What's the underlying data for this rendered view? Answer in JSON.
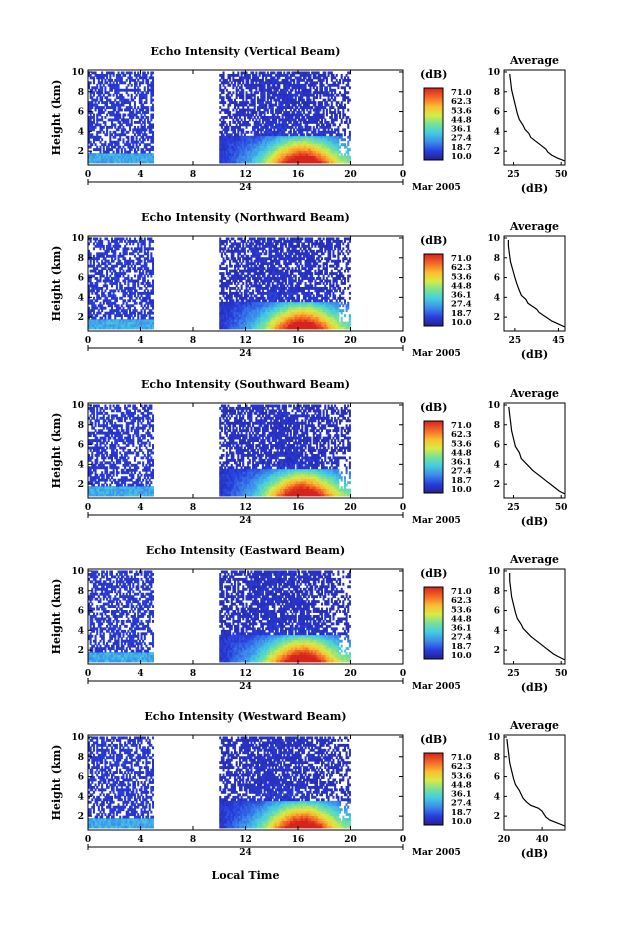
{
  "chart_data": {
    "type": "heatmap",
    "date_label": "Mar 2005",
    "day_label": "24",
    "xlabel": "Local Time",
    "ylabel": "Height (km)",
    "x_ticks": [
      "0",
      "4",
      "8",
      "12",
      "16",
      "20",
      "0"
    ],
    "y_ticks": [
      "2",
      "4",
      "6",
      "8",
      "10"
    ],
    "xlim_hours": [
      0,
      24
    ],
    "ylim_km": [
      0.6,
      10.2
    ],
    "colorbar": {
      "unit": "(dB)",
      "labels": [
        "71.0",
        "62.3",
        "53.6",
        "44.8",
        "36.1",
        "27.4",
        "18.7",
        "10.0"
      ],
      "range": [
        10.0,
        71.0
      ]
    },
    "average_title": "Average",
    "average_xlabel": "(dB)",
    "panels": [
      {
        "title": "Echo Intensity (Vertical Beam)",
        "avg_xlim": [
          20,
          52
        ],
        "avg_ticks": [
          "25",
          "50"
        ],
        "avg_tick_values": [
          25,
          50
        ],
        "avg_profile": [
          [
            52,
            1.0
          ],
          [
            48,
            1.3
          ],
          [
            45,
            1.6
          ],
          [
            43,
            1.9
          ],
          [
            42,
            2.2
          ],
          [
            40,
            2.5
          ],
          [
            38,
            2.8
          ],
          [
            36,
            3.1
          ],
          [
            34,
            3.4
          ],
          [
            33,
            3.8
          ],
          [
            31,
            4.2
          ],
          [
            30,
            4.6
          ],
          [
            28,
            5.2
          ],
          [
            27,
            5.8
          ],
          [
            26,
            6.6
          ],
          [
            25,
            7.4
          ],
          [
            24,
            8.2
          ],
          [
            23.5,
            9.0
          ],
          [
            23,
            9.8
          ]
        ],
        "data_hours": [
          [
            0,
            5
          ],
          [
            10,
            20
          ]
        ]
      },
      {
        "title": "Echo Intensity (Northward Beam)",
        "avg_xlim": [
          20,
          48
        ],
        "avg_ticks": [
          "25",
          "45"
        ],
        "avg_tick_values": [
          25,
          45
        ],
        "avg_profile": [
          [
            48,
            1.0
          ],
          [
            45,
            1.3
          ],
          [
            42,
            1.6
          ],
          [
            40,
            1.9
          ],
          [
            38,
            2.2
          ],
          [
            36,
            2.5
          ],
          [
            35,
            2.8
          ],
          [
            33,
            3.1
          ],
          [
            31,
            3.4
          ],
          [
            30,
            3.8
          ],
          [
            28,
            4.2
          ],
          [
            27,
            4.7
          ],
          [
            26,
            5.3
          ],
          [
            25,
            6.0
          ],
          [
            24,
            6.8
          ],
          [
            23,
            7.6
          ],
          [
            22.5,
            8.4
          ],
          [
            22,
            9.2
          ],
          [
            22,
            9.8
          ]
        ],
        "data_hours": [
          [
            0,
            5
          ],
          [
            10,
            20
          ]
        ]
      },
      {
        "title": "Echo Intensity (Southward Beam)",
        "avg_xlim": [
          20,
          52
        ],
        "avg_ticks": [
          "25",
          "50"
        ],
        "avg_tick_values": [
          25,
          50
        ],
        "avg_profile": [
          [
            52,
            1.0
          ],
          [
            49,
            1.3
          ],
          [
            47,
            1.6
          ],
          [
            45,
            1.9
          ],
          [
            43,
            2.2
          ],
          [
            41,
            2.5
          ],
          [
            39,
            2.8
          ],
          [
            37,
            3.1
          ],
          [
            35,
            3.4
          ],
          [
            33,
            3.8
          ],
          [
            31,
            4.2
          ],
          [
            29,
            4.6
          ],
          [
            28,
            5.2
          ],
          [
            26,
            5.8
          ],
          [
            25,
            6.6
          ],
          [
            24,
            7.4
          ],
          [
            23.5,
            8.2
          ],
          [
            23,
            9.0
          ],
          [
            22.5,
            9.8
          ]
        ],
        "data_hours": [
          [
            0,
            5
          ],
          [
            10,
            20
          ]
        ]
      },
      {
        "title": "Echo Intensity (Eastward Beam)",
        "avg_xlim": [
          20,
          52
        ],
        "avg_ticks": [
          "25",
          "50"
        ],
        "avg_tick_values": [
          25,
          50
        ],
        "avg_profile": [
          [
            52,
            1.0
          ],
          [
            49,
            1.3
          ],
          [
            46,
            1.6
          ],
          [
            44,
            1.9
          ],
          [
            42,
            2.2
          ],
          [
            40,
            2.5
          ],
          [
            38,
            2.8
          ],
          [
            36,
            3.1
          ],
          [
            34,
            3.4
          ],
          [
            32,
            3.8
          ],
          [
            30,
            4.2
          ],
          [
            29,
            4.6
          ],
          [
            27,
            5.2
          ],
          [
            26,
            5.8
          ],
          [
            25,
            6.6
          ],
          [
            24,
            7.4
          ],
          [
            23.5,
            8.2
          ],
          [
            23,
            9.0
          ],
          [
            23,
            9.8
          ]
        ],
        "data_hours": [
          [
            0,
            5
          ],
          [
            10,
            20
          ]
        ]
      },
      {
        "title": "Echo Intensity (Westward Beam)",
        "avg_xlim": [
          20,
          52
        ],
        "avg_ticks": [
          "20",
          "40"
        ],
        "avg_tick_values": [
          20,
          40
        ],
        "avg_profile": [
          [
            52,
            1.0
          ],
          [
            48,
            1.3
          ],
          [
            44,
            1.6
          ],
          [
            42,
            1.9
          ],
          [
            41,
            2.2
          ],
          [
            40,
            2.5
          ],
          [
            38,
            2.8
          ],
          [
            34,
            3.1
          ],
          [
            32,
            3.4
          ],
          [
            30,
            3.8
          ],
          [
            29,
            4.2
          ],
          [
            28,
            4.6
          ],
          [
            26,
            5.2
          ],
          [
            25,
            5.8
          ],
          [
            24,
            6.6
          ],
          [
            23,
            7.4
          ],
          [
            22.5,
            8.2
          ],
          [
            22,
            9.0
          ],
          [
            21.5,
            9.8
          ]
        ],
        "data_hours": [
          [
            0,
            5
          ],
          [
            10,
            20
          ]
        ]
      }
    ]
  }
}
